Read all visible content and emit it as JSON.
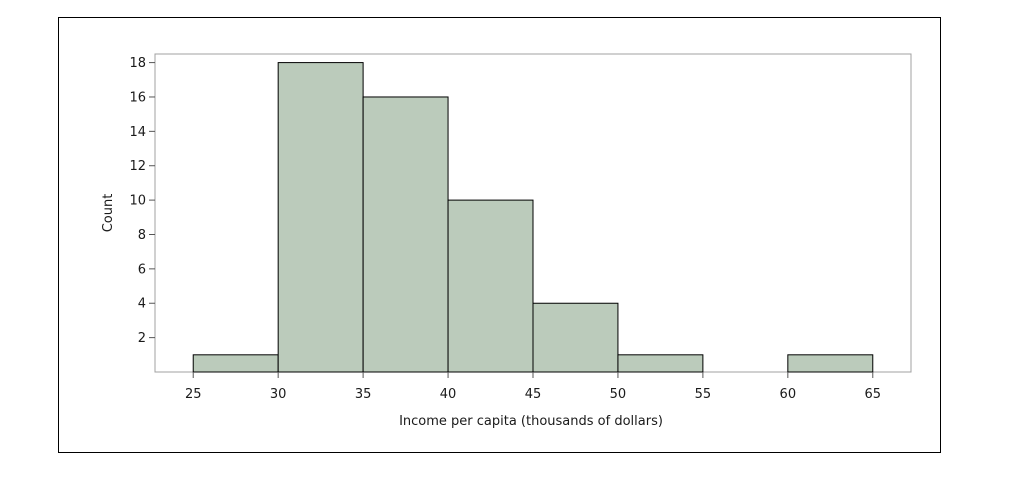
{
  "chart_data": {
    "type": "histogram",
    "title": "",
    "xlabel": "Income per capita (thousands of dollars)",
    "ylabel": "Count",
    "bins": [
      {
        "start": 25,
        "end": 30,
        "count": 1
      },
      {
        "start": 30,
        "end": 35,
        "count": 18
      },
      {
        "start": 35,
        "end": 40,
        "count": 16
      },
      {
        "start": 40,
        "end": 45,
        "count": 10
      },
      {
        "start": 45,
        "end": 50,
        "count": 4
      },
      {
        "start": 50,
        "end": 55,
        "count": 1
      },
      {
        "start": 55,
        "end": 60,
        "count": 0
      },
      {
        "start": 60,
        "end": 65,
        "count": 1
      }
    ],
    "x_ticks": [
      25,
      30,
      35,
      40,
      45,
      50,
      55,
      60,
      65
    ],
    "y_ticks": [
      2,
      4,
      6,
      8,
      10,
      12,
      14,
      16,
      18
    ],
    "xlim": [
      22.75,
      67.25
    ],
    "ylim": [
      0,
      18.5
    ],
    "grid": false,
    "bar_color": "#bbcbbb",
    "bar_edge_color": "#000000"
  }
}
